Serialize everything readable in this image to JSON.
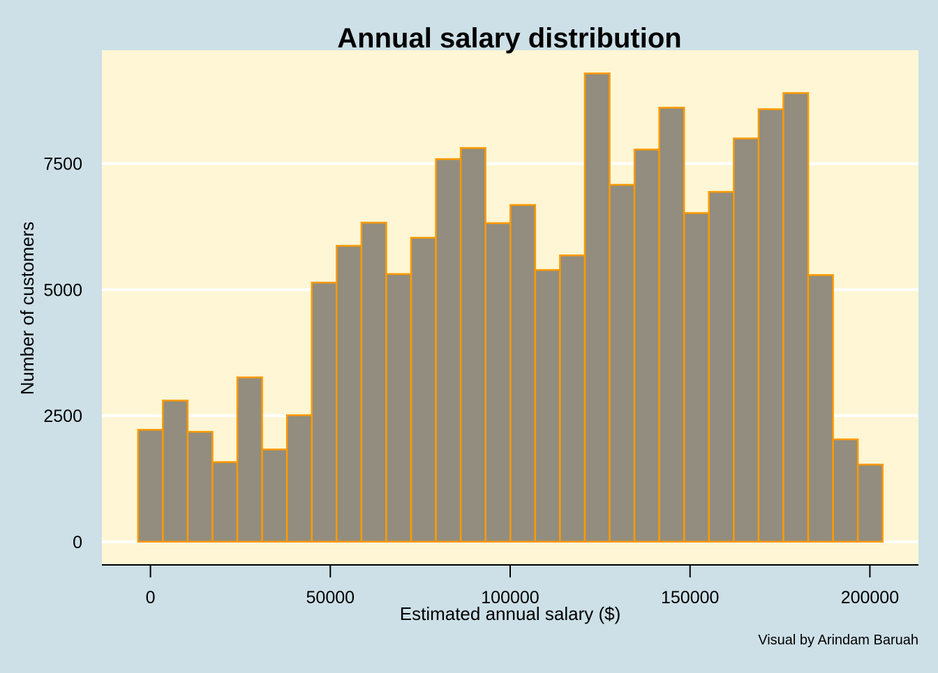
{
  "colors": {
    "background": "#cde0e7",
    "panel": "#fef6d4",
    "gridline": "#ffffff",
    "bar_fill": "#918c7c",
    "bar_stroke": "#ff9a00",
    "axis": "#000000"
  },
  "chart_data": {
    "type": "bar",
    "title": "Annual salary distribution",
    "xlabel": "Estimated annual salary ($)",
    "ylabel": "Number of customers",
    "caption": "Visual by Arindam Baruah",
    "xlim": [
      -13500,
      213500
    ],
    "ylim": [
      -460,
      9750
    ],
    "x_ticks": [
      0,
      50000,
      100000,
      150000,
      200000
    ],
    "x_tick_labels": [
      "0",
      "50000",
      "100000",
      "150000",
      "200000"
    ],
    "y_ticks": [
      0,
      2500,
      5000,
      7500
    ],
    "y_tick_labels": [
      "0",
      "2500",
      "5000",
      "7500"
    ],
    "grid": true,
    "bin_start": -3450,
    "bin_width": 6900,
    "values": [
      2220,
      2800,
      2180,
      1580,
      3260,
      1830,
      2510,
      5140,
      5870,
      6330,
      5310,
      6030,
      7590,
      7810,
      6320,
      6680,
      5390,
      5680,
      9290,
      7080,
      7780,
      8610,
      6520,
      6940,
      8000,
      8580,
      8900,
      5290,
      2030,
      1530
    ]
  }
}
